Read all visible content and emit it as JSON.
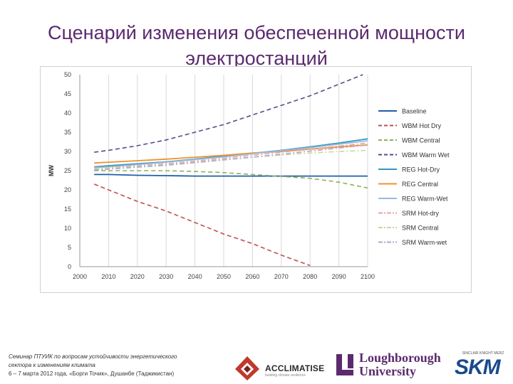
{
  "slide": {
    "title_line1": "Сценарий изменения обеспеченной мощности",
    "title_line2": "электростанций"
  },
  "footer": {
    "line1": "Семинар ПТУИК по вопросам устойчивости энергетического",
    "line2": "сектора к изменениям климата",
    "line3": "6 – 7 марта 2012 года, «Борги Точик», Душанбе (Таджикистан)",
    "logo_acclimatise": "ACCLIMATISE",
    "logo_acclimatise_sub": "building climate resilience",
    "logo_loughborough": "Loughborough University",
    "logo_loughborough_line1": "Loughborough",
    "logo_loughborough_line2": "University",
    "logo_skm_tag": "SINCLAIR KNIGHT MERZ",
    "logo_skm": "SKM"
  },
  "colors": {
    "title": "#5b2a6e",
    "baseline": "#1f5fa8",
    "wbm_hot_dry": "#c0504d",
    "wbm_central": "#8fb05a",
    "wbm_warm_wet": "#5a4a8e",
    "reg_hot_dry": "#2e9ac0",
    "reg_central": "#f0902e",
    "reg_warm_wet": "#9ab8dc",
    "srm_hot_dry": "#e6a5a3",
    "srm_central": "#c6d9a0",
    "srm_warm_wet": "#b0a7cc"
  },
  "chart_data": {
    "type": "line",
    "title": "",
    "xlabel": "",
    "ylabel": "MW",
    "xlim": [
      2000,
      2100
    ],
    "ylim": [
      0,
      50
    ],
    "x_ticks": [
      "2000",
      "2010",
      "2020",
      "2030",
      "2040",
      "2050",
      "2060",
      "2070",
      "2080",
      "2090",
      "2100"
    ],
    "y_ticks": [
      "0",
      "5",
      "10",
      "15",
      "20",
      "25",
      "30",
      "35",
      "40",
      "45",
      "50"
    ],
    "grid": "vertical",
    "legend": "right",
    "x": [
      2005,
      2010,
      2020,
      2030,
      2040,
      2050,
      2060,
      2070,
      2080,
      2090,
      2100
    ],
    "series": [
      {
        "name": "Baseline",
        "style": "solid",
        "color_key": "baseline",
        "values": [
          24,
          24,
          23.8,
          23.7,
          23.6,
          23.6,
          23.6,
          23.6,
          23.6,
          23.6,
          23.6
        ]
      },
      {
        "name": "WBM Hot Dry",
        "style": "dashed",
        "color_key": "wbm_hot_dry",
        "values": [
          21.5,
          20,
          17,
          14.5,
          11.5,
          8.5,
          6,
          3,
          0.3,
          null,
          null
        ]
      },
      {
        "name": "WBM Central",
        "style": "dashed",
        "color_key": "wbm_central",
        "values": [
          25,
          25,
          25,
          25,
          24.8,
          24.5,
          24,
          23.5,
          23,
          22,
          20.5
        ]
      },
      {
        "name": "WBM Warm Wet",
        "style": "dashed",
        "color_key": "wbm_warm_wet",
        "values": [
          29.8,
          30.3,
          31.5,
          33,
          35,
          37,
          39.5,
          42,
          44.5,
          47.5,
          50.5
        ]
      },
      {
        "name": "REG Hot-Dry",
        "style": "solid",
        "color_key": "reg_hot_dry",
        "values": [
          26,
          26.3,
          26.8,
          27.3,
          28,
          28.8,
          29.5,
          30.3,
          31.2,
          32.2,
          33.3
        ]
      },
      {
        "name": "REG Central",
        "style": "solid",
        "color_key": "reg_central",
        "values": [
          27,
          27.2,
          27.6,
          28,
          28.5,
          29,
          29.6,
          30,
          30.6,
          31.2,
          31.7
        ]
      },
      {
        "name": "REG Warm-Wet",
        "style": "solid",
        "color_key": "reg_warm_wet",
        "values": [
          25.8,
          26,
          26.6,
          27.2,
          27.9,
          28.6,
          29.4,
          30.2,
          31,
          31.9,
          32.8
        ]
      },
      {
        "name": "SRM Hot-dry",
        "style": "dashdot",
        "color_key": "srm_hot_dry",
        "values": [
          25.6,
          25.8,
          26.3,
          26.8,
          27.5,
          28.2,
          29,
          29.8,
          30.6,
          31.4,
          32.2
        ]
      },
      {
        "name": "SRM Central",
        "style": "dashdot",
        "color_key": "srm_central",
        "values": [
          25.5,
          25.7,
          26.1,
          26.6,
          27.2,
          27.9,
          28.5,
          29.1,
          29.6,
          30,
          30.3
        ]
      },
      {
        "name": "SRM Warm-wet",
        "style": "dashdot",
        "color_key": "srm_warm_wet",
        "values": [
          25.2,
          25.4,
          25.9,
          26.4,
          27.1,
          27.8,
          28.5,
          29.3,
          30.1,
          30.9,
          31.7
        ]
      }
    ]
  }
}
